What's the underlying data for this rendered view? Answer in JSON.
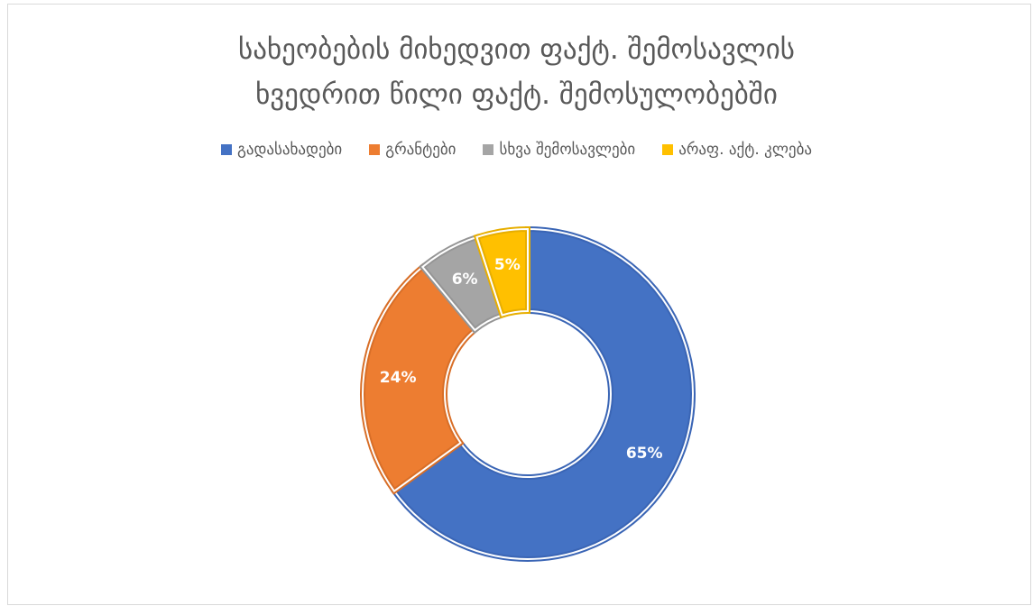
{
  "chart_data": {
    "type": "pie",
    "variant": "doughnut",
    "title_lines": [
      "სახეობების მიხედვით ფაქტ. შემოსავლის",
      "ხვედრით წილი ფაქტ. შემოსულობებში"
    ],
    "legend_position": "top",
    "categories": [
      "გადასახადები",
      "გრანტები",
      "სხვა შემოსავლები",
      "არაფ. აქტ. კლება"
    ],
    "values": [
      65,
      24,
      6,
      5
    ],
    "labels": [
      "65%",
      "24%",
      "6%",
      "5%"
    ],
    "colors": [
      "#4472C4",
      "#ED7D31",
      "#A5A5A5",
      "#FFC000"
    ],
    "border_colors": [
      "#3A65B5",
      "#D86E27",
      "#959595",
      "#E7AE00"
    ]
  }
}
